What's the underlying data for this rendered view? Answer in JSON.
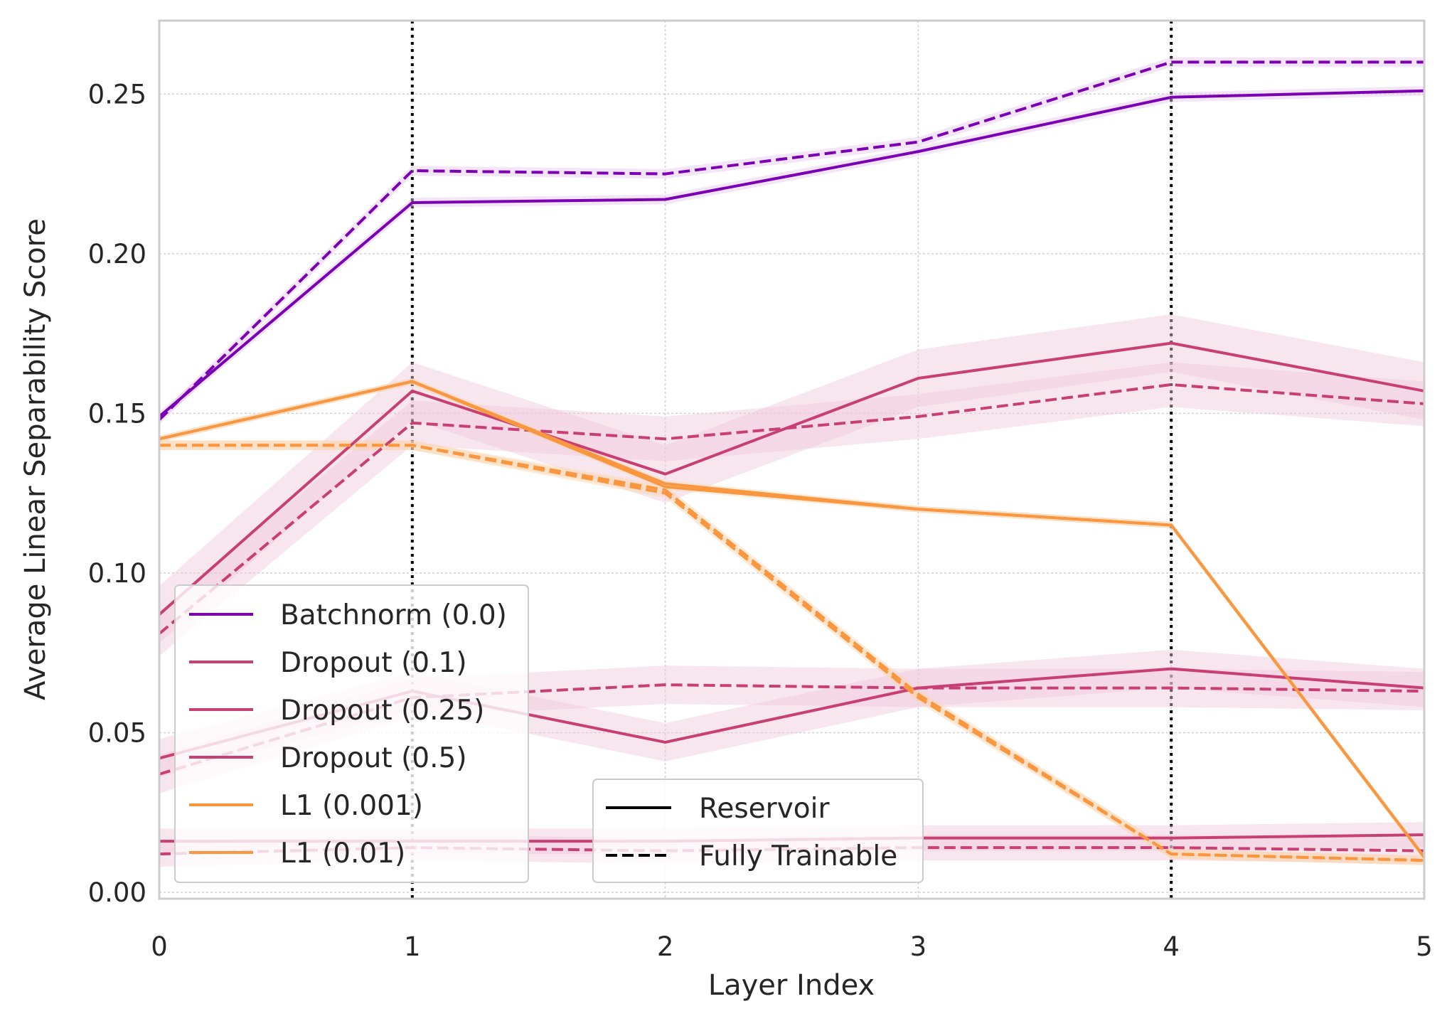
{
  "chart_data": {
    "type": "line",
    "title": "",
    "xlabel": "Layer Index",
    "ylabel": "Average Linear Separability Score",
    "xlim": [
      0,
      5
    ],
    "ylim": [
      -0.002,
      0.273
    ],
    "xticks": [
      0,
      1,
      2,
      3,
      4,
      5
    ],
    "xtick_labels": [
      "0",
      "1",
      "2",
      "3",
      "4",
      "5"
    ],
    "yticks": [
      0.0,
      0.05,
      0.1,
      0.15,
      0.2,
      0.25
    ],
    "ytick_labels": [
      "0.00",
      "0.05",
      "0.10",
      "0.15",
      "0.20",
      "0.25"
    ],
    "grid": true,
    "vertical_markers": [
      1,
      4
    ],
    "x": [
      0,
      1,
      2,
      3,
      4,
      5
    ],
    "colors": {
      "batchnorm": "#7b00b4",
      "dropout": "#c83f74",
      "l1": "#f99640",
      "band_dropout": "#f0c8d9",
      "band_l1": "#fbd4b0",
      "band_batchnorm": "#e3c6ee"
    },
    "series": [
      {
        "name": "Batchnorm (0.0)",
        "mode": "Reservoir",
        "color": "#7b00b4",
        "values": [
          0.149,
          0.216,
          0.217,
          0.232,
          0.249,
          0.251
        ],
        "band": 0.0015
      },
      {
        "name": "Batchnorm (0.0)",
        "mode": "Fully Trainable",
        "color": "#7b00b4",
        "values": [
          0.148,
          0.226,
          0.225,
          0.235,
          0.26,
          0.26
        ],
        "band": 0.0015
      },
      {
        "name": "Dropout (0.1)",
        "mode": "Reservoir",
        "color": "#c83f74",
        "values": [
          0.087,
          0.157,
          0.131,
          0.161,
          0.172,
          0.157
        ],
        "band": 0.009
      },
      {
        "name": "Dropout (0.1)",
        "mode": "Fully Trainable",
        "color": "#c83f74",
        "values": [
          0.081,
          0.147,
          0.142,
          0.149,
          0.159,
          0.153
        ],
        "band": 0.007
      },
      {
        "name": "Dropout (0.25)",
        "mode": "Reservoir",
        "color": "#c83f74",
        "values": [
          0.042,
          0.063,
          0.047,
          0.064,
          0.07,
          0.064
        ],
        "band": 0.006
      },
      {
        "name": "Dropout (0.25)",
        "mode": "Fully Trainable",
        "color": "#c83f74",
        "values": [
          0.037,
          0.061,
          0.065,
          0.064,
          0.064,
          0.063
        ],
        "band": 0.006
      },
      {
        "name": "Dropout (0.5)",
        "mode": "Reservoir",
        "color": "#c83f74",
        "values": [
          0.016,
          0.016,
          0.016,
          0.017,
          0.017,
          0.018
        ],
        "band": 0.004
      },
      {
        "name": "Dropout (0.5)",
        "mode": "Fully Trainable",
        "color": "#c83f74",
        "values": [
          0.012,
          0.014,
          0.013,
          0.014,
          0.014,
          0.013
        ],
        "band": 0.004
      },
      {
        "name": "L1 (0.001)",
        "mode": "Reservoir",
        "color": "#f99640",
        "values": [
          0.142,
          0.16,
          0.127,
          0.12,
          0.115,
          0.011
        ],
        "band": 0.001
      },
      {
        "name": "L1 (0.001)",
        "mode": "Fully Trainable",
        "color": "#f99640",
        "values": [
          0.14,
          0.14,
          0.125,
          0.061,
          0.012,
          0.01
        ],
        "band": 0.0015
      },
      {
        "name": "L1 (0.01)",
        "mode": "Reservoir",
        "color": "#f99640",
        "values": [
          0.142,
          0.16,
          0.128,
          0.12,
          0.115,
          0.011
        ],
        "band": 0.001
      },
      {
        "name": "L1 (0.01)",
        "mode": "Fully Trainable",
        "color": "#f99640",
        "values": [
          0.14,
          0.14,
          0.126,
          0.062,
          0.012,
          0.01
        ],
        "band": 0.0015
      }
    ],
    "legend_series": {
      "placement": "lower-left",
      "entries": [
        {
          "label": "Batchnorm (0.0)",
          "color": "#7b00b4"
        },
        {
          "label": "Dropout (0.1)",
          "color": "#c83f74"
        },
        {
          "label": "Dropout (0.25)",
          "color": "#c83f74"
        },
        {
          "label": "Dropout (0.5)",
          "color": "#c83f74"
        },
        {
          "label": "L1 (0.001)",
          "color": "#f99640"
        },
        {
          "label": "L1 (0.01)",
          "color": "#f99640"
        }
      ]
    },
    "legend_style": {
      "placement": "lower-center",
      "entries": [
        {
          "label": "Reservoir",
          "dash": "solid"
        },
        {
          "label": "Fully Trainable",
          "dash": "dashed"
        }
      ]
    }
  }
}
